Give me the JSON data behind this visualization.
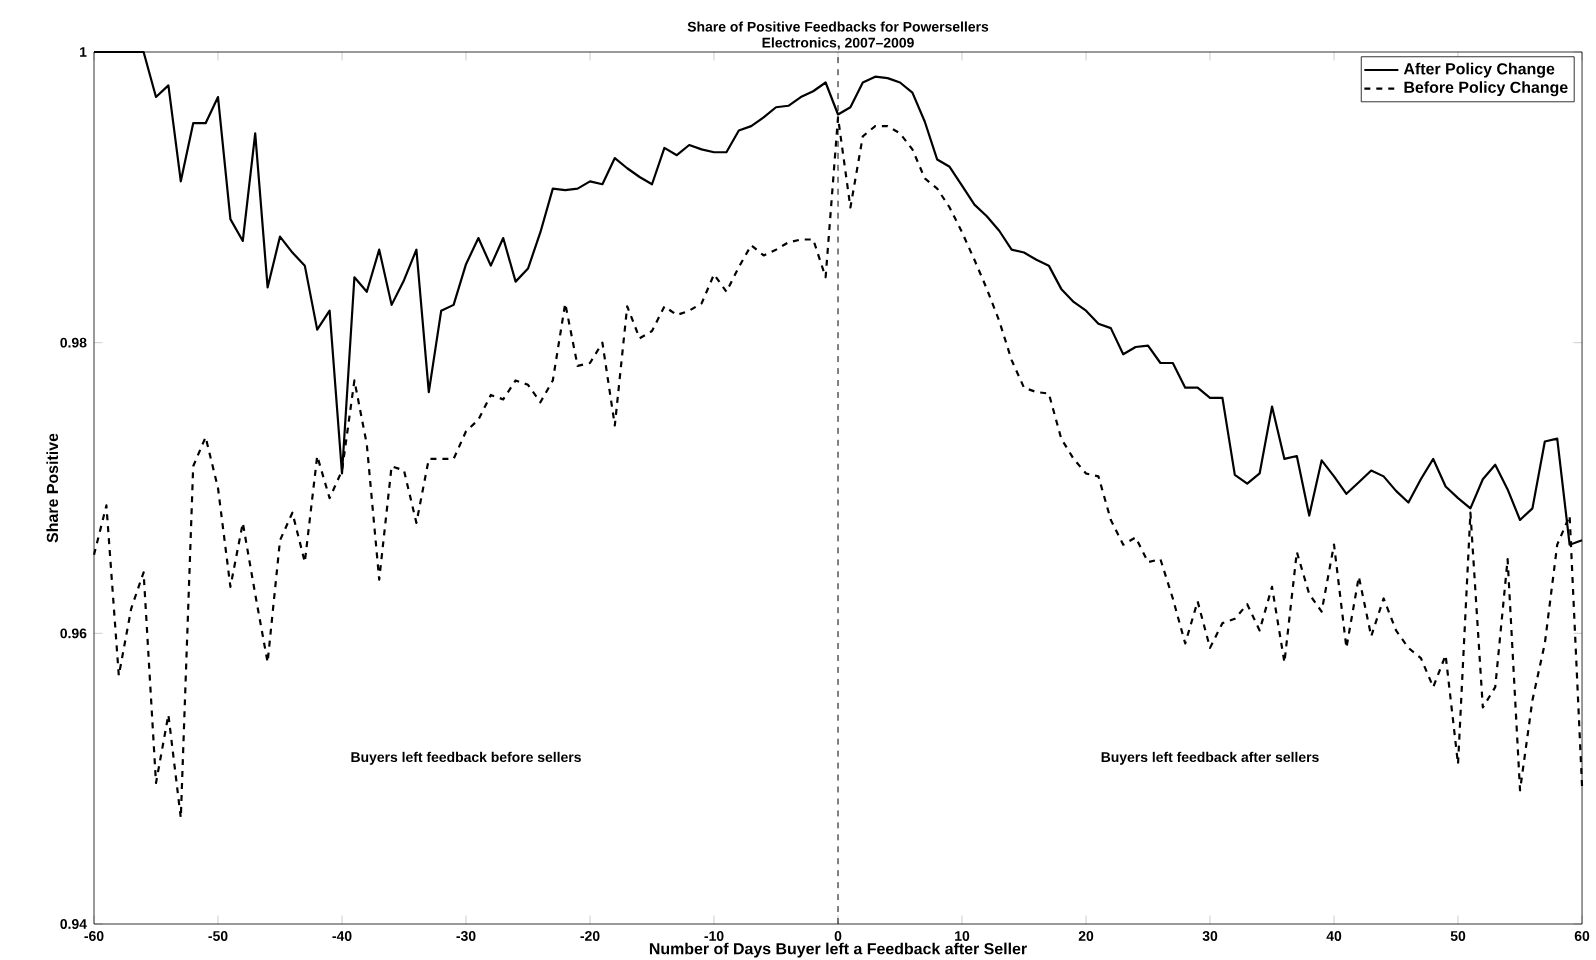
{
  "chart_data": {
    "type": "line",
    "title": "Share of Positive Feedbacks for Powersellers",
    "subtitle": "Electronics, 2007–2009",
    "xlabel": "Number of Days Buyer left a Feedback after Seller",
    "ylabel": "Share Positive",
    "x": [
      -60,
      -59,
      -58,
      -57,
      -56,
      -55,
      -54,
      -53,
      -52,
      -51,
      -50,
      -49,
      -48,
      -47,
      -46,
      -45,
      -44,
      -43,
      -42,
      -41,
      -40,
      -39,
      -38,
      -37,
      -36,
      -35,
      -34,
      -33,
      -32,
      -31,
      -30,
      -29,
      -28,
      -27,
      -26,
      -25,
      -24,
      -23,
      -22,
      -21,
      -20,
      -19,
      -18,
      -17,
      -16,
      -15,
      -14,
      -13,
      -12,
      -11,
      -10,
      -9,
      -8,
      -7,
      -6,
      -5,
      -4,
      -3,
      -2,
      -1,
      0,
      1,
      2,
      3,
      4,
      5,
      6,
      7,
      8,
      9,
      10,
      11,
      12,
      13,
      14,
      15,
      16,
      17,
      18,
      19,
      20,
      21,
      22,
      23,
      24,
      25,
      26,
      27,
      28,
      29,
      30,
      31,
      32,
      33,
      34,
      35,
      36,
      37,
      38,
      39,
      40,
      41,
      42,
      43,
      44,
      45,
      46,
      47,
      48,
      49,
      50,
      51,
      52,
      53,
      54,
      55,
      56,
      57,
      58,
      59,
      60
    ],
    "series": [
      {
        "name": "After Policy Change",
        "color": "#000000",
        "line_style": "solid",
        "values": [
          1.0,
          1.0,
          1.0,
          1.0,
          1.0,
          0.9969,
          0.9977,
          0.9911,
          0.9951,
          0.9951,
          0.9969,
          0.9885,
          0.987,
          0.9944,
          0.9838,
          0.9873,
          0.9862,
          0.9853,
          0.9809,
          0.9822,
          0.971,
          0.9845,
          0.9835,
          0.9864,
          0.9826,
          0.9843,
          0.9864,
          0.9766,
          0.9822,
          0.9826,
          0.9854,
          0.9872,
          0.9853,
          0.9872,
          0.9842,
          0.9851,
          0.9876,
          0.9906,
          0.9905,
          0.9906,
          0.9911,
          0.9909,
          0.9927,
          0.992,
          0.9914,
          0.9909,
          0.9934,
          0.9929,
          0.9936,
          0.9933,
          0.9931,
          0.9931,
          0.9946,
          0.9949,
          0.9955,
          0.9962,
          0.9963,
          0.9969,
          0.9973,
          0.9979,
          0.9957,
          0.9962,
          0.9979,
          0.9983,
          0.9982,
          0.9979,
          0.9972,
          0.9952,
          0.9926,
          0.9921,
          0.9908,
          0.9895,
          0.9887,
          0.9877,
          0.9864,
          0.9862,
          0.9857,
          0.9853,
          0.9837,
          0.9828,
          0.9822,
          0.9813,
          0.981,
          0.9792,
          0.9797,
          0.9798,
          0.9786,
          0.9786,
          0.9769,
          0.9769,
          0.9762,
          0.9762,
          0.9709,
          0.9703,
          0.971,
          0.9756,
          0.972,
          0.9722,
          0.9681,
          0.9719,
          0.9708,
          0.9696,
          0.9704,
          0.9712,
          0.9708,
          0.9698,
          0.969,
          0.9706,
          0.972,
          0.9701,
          0.9693,
          0.9686,
          0.9706,
          0.9716,
          0.9699,
          0.9678,
          0.9686,
          0.9732,
          0.9734,
          0.9661,
          0.9664
        ]
      },
      {
        "name": "Before Policy Change",
        "color": "#000000",
        "line_style": "dashed",
        "values": [
          0.9654,
          0.9688,
          0.9571,
          0.9617,
          0.9642,
          0.9497,
          0.9544,
          0.9473,
          0.9715,
          0.9735,
          0.97,
          0.9632,
          0.9676,
          0.9627,
          0.958,
          0.9664,
          0.9683,
          0.9649,
          0.9722,
          0.9693,
          0.9712,
          0.9774,
          0.973,
          0.9637,
          0.9715,
          0.9712,
          0.9676,
          0.972,
          0.972,
          0.972,
          0.9739,
          0.9747,
          0.9764,
          0.9761,
          0.9774,
          0.9771,
          0.9759,
          0.9774,
          0.9827,
          0.9784,
          0.9786,
          0.98,
          0.9743,
          0.9825,
          0.9803,
          0.9808,
          0.9825,
          0.9819,
          0.9822,
          0.9827,
          0.9847,
          0.9835,
          0.9852,
          0.9867,
          0.986,
          0.9864,
          0.9869,
          0.9871,
          0.9871,
          0.9845,
          0.9955,
          0.9893,
          0.9942,
          0.9949,
          0.9949,
          0.9944,
          0.9933,
          0.9913,
          0.9906,
          0.9893,
          0.9876,
          0.9857,
          0.9837,
          0.9815,
          0.9788,
          0.9769,
          0.9766,
          0.9765,
          0.9734,
          0.972,
          0.971,
          0.9708,
          0.9678,
          0.9661,
          0.9666,
          0.9649,
          0.9651,
          0.9624,
          0.9593,
          0.9622,
          0.959,
          0.9607,
          0.961,
          0.962,
          0.9602,
          0.9632,
          0.958,
          0.9656,
          0.9627,
          0.9615,
          0.9661,
          0.959,
          0.9639,
          0.9598,
          0.9624,
          0.9602,
          0.959,
          0.9583,
          0.9563,
          0.9585,
          0.951,
          0.9683,
          0.9549,
          0.9563,
          0.9651,
          0.9492,
          0.9554,
          0.9593,
          0.9661,
          0.9681,
          0.9495
        ]
      }
    ],
    "xlim": [
      -60,
      60
    ],
    "ylim": [
      0.94,
      1.0
    ],
    "xticks": [
      -60,
      -50,
      -40,
      -30,
      -20,
      -10,
      0,
      10,
      20,
      30,
      40,
      50,
      60
    ],
    "yticks": [
      {
        "value": 0.94,
        "label": "0.94"
      },
      {
        "value": 0.96,
        "label": "0.96"
      },
      {
        "value": 0.98,
        "label": "0.98"
      },
      {
        "value": 1.0,
        "label": "1"
      }
    ],
    "ref_lines": [
      {
        "axis": "x",
        "value": 0,
        "line_style": "dashed",
        "color": "#000000"
      }
    ],
    "annotations": [
      "Buyers left feedback before sellers",
      "Buyers left feedback after sellers"
    ],
    "legend": "top right",
    "grid": false
  }
}
